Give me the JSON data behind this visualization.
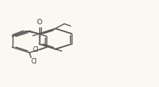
{
  "bg_color": "#faf8f0",
  "line_color": "#555555",
  "line_width": 1.0,
  "text_color": "#333333",
  "font_size": 5.5,
  "atoms": {
    "Cl1_label": "Cl",
    "Cl2_label": "Cl",
    "O_label": "O"
  },
  "figsize": [
    2.02,
    1.11
  ],
  "dpi": 100
}
